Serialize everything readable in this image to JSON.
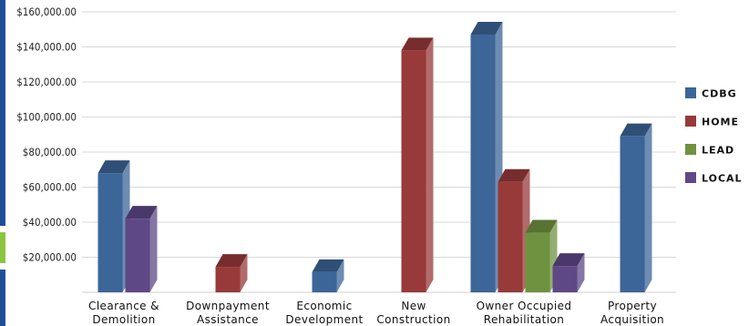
{
  "chart_data": {
    "type": "bar",
    "categories": [
      [
        "Clearance &",
        "Demolition"
      ],
      [
        "Downpayment",
        "Assistance"
      ],
      [
        "Economic",
        "Development"
      ],
      [
        "New",
        "Construction"
      ],
      [
        "Owner Occupied",
        "Rehabilitation"
      ],
      [
        "Property",
        "Acquisition"
      ]
    ],
    "series": [
      {
        "name": "CDBG",
        "color": "#3c6598",
        "values": [
          68000,
          0,
          11500,
          0,
          147000,
          89000
        ]
      },
      {
        "name": "HOME",
        "color": "#973a39",
        "values": [
          0,
          14500,
          0,
          138000,
          63000,
          0
        ]
      },
      {
        "name": "LEAD",
        "color": "#6f9240",
        "values": [
          0,
          0,
          0,
          0,
          34000,
          0
        ]
      },
      {
        "name": "LOCAL",
        "color": "#5e4886",
        "values": [
          42000,
          0,
          0,
          0,
          15000,
          0
        ]
      }
    ],
    "y_ticks": [
      "$20,000.00",
      "$40,000.00",
      "$60,000.00",
      "$80,000.00",
      "$100,000.00",
      "$120,000.00",
      "$140,000.00",
      "$160,000.00"
    ],
    "y_tick_values": [
      20000,
      40000,
      60000,
      80000,
      100000,
      120000,
      140000,
      160000
    ],
    "ylim": [
      0,
      160000
    ],
    "grid": true,
    "legend_position": "right",
    "bar_style": "3d"
  }
}
